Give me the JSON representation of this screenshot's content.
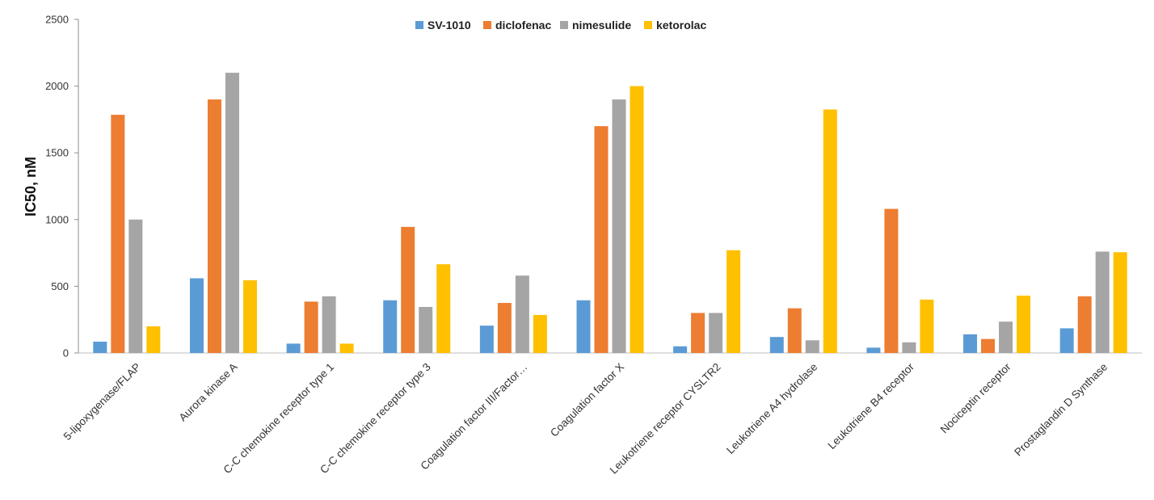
{
  "chart_data": {
    "type": "bar",
    "title": "",
    "xlabel": "",
    "ylabel": "IC50, nM",
    "ylim": [
      0,
      2500
    ],
    "yticks": [
      0,
      500,
      1000,
      1500,
      2000,
      2500
    ],
    "grid": false,
    "legend_position": "top-center",
    "categories": [
      "5-lipoxygenase/FLAP",
      "Aurora kinase A",
      "C-C chemokine receptor type 1",
      "C-C chemokine receptor type 3",
      "Coagulation factor III/Factor…",
      "Coagulation factor X",
      "Leukotriene receptor CYSLTR2",
      "Leukotriene A4 hydrolase",
      "Leukotriene B4 receptor",
      "Nociceptin receptor",
      "Prostaglandin D Synthase"
    ],
    "series": [
      {
        "name": "SV-1010",
        "color": "#5B9BD5",
        "values": [
          85,
          560,
          70,
          395,
          205,
          395,
          50,
          120,
          40,
          140,
          185
        ]
      },
      {
        "name": "diclofenac",
        "color": "#ED7D31",
        "values": [
          1785,
          1900,
          385,
          945,
          375,
          1700,
          300,
          335,
          1080,
          105,
          425
        ]
      },
      {
        "name": "nimesulide",
        "color": "#A5A5A5",
        "values": [
          1000,
          2100,
          425,
          345,
          580,
          1900,
          300,
          95,
          80,
          235,
          760
        ]
      },
      {
        "name": "ketorolac",
        "color": "#FFC000",
        "values": [
          200,
          545,
          70,
          665,
          285,
          2000,
          770,
          1825,
          400,
          430,
          755
        ]
      }
    ]
  }
}
